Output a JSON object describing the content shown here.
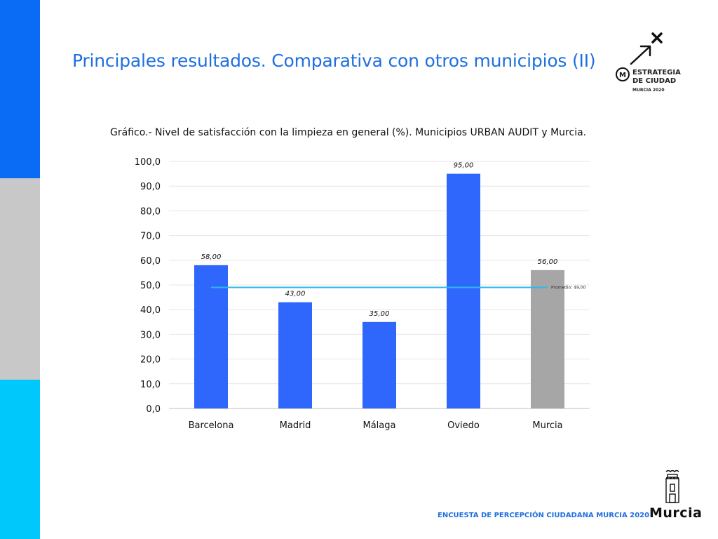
{
  "page": {
    "title": "Principales resultados. Comparativa con otros municipios (II)",
    "footer": "ENCUESTA DE PERCEPCIÓN CIUDADANA MURCIA 2020"
  },
  "logo_strategy": {
    "line1": "ESTRATEGIA",
    "line2": "DE CIUDAD",
    "line3": "MURCIA 2020",
    "badge": "M"
  },
  "logo_murcia": {
    "word": "Murcia"
  },
  "colors": {
    "accent": "#1f6fe0",
    "bar": "#2f66fb",
    "bar_highlight": "#a6a6a6",
    "average_line": "#2bb8f0",
    "side_blue": "#0a6cf5",
    "side_gray": "#c8c8c8",
    "side_cyan": "#00c8fa"
  },
  "chart_data": {
    "type": "bar",
    "title": "Gráfico.-  Nivel de satisfacción con la limpieza en general (%). Municipios URBAN AUDIT y Murcia.",
    "categories": [
      "Barcelona",
      "Madrid",
      "Málaga",
      "Oviedo",
      "Murcia"
    ],
    "values": [
      58,
      43,
      35,
      95,
      56
    ],
    "value_labels": [
      "58,00",
      "43,00",
      "35,00",
      "95,00",
      "56,00"
    ],
    "highlight_category": "Murcia",
    "ylim": [
      0,
      100
    ],
    "y_ticks": [
      0,
      10,
      20,
      30,
      40,
      50,
      60,
      70,
      80,
      90,
      100
    ],
    "y_tick_labels": [
      "0,0",
      "10,0",
      "20,0",
      "30,0",
      "40,0",
      "50,0",
      "60,0",
      "70,0",
      "80,0",
      "90,0",
      "100,0"
    ],
    "grid": true,
    "average": {
      "value": 49,
      "label": "Promedio: 49,00"
    }
  }
}
